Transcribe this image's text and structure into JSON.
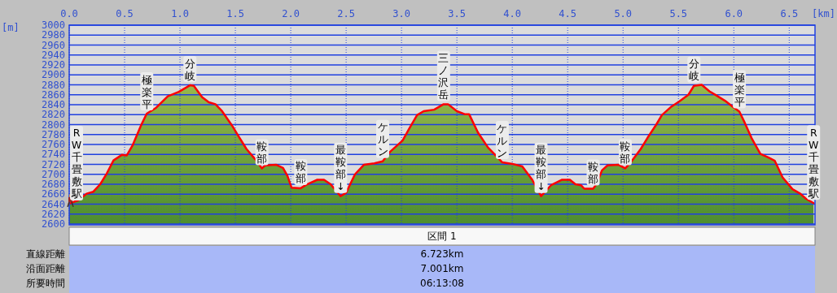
{
  "chart_data": {
    "type": "area",
    "xlabel": "[km]",
    "ylabel": "[m]",
    "grid": true,
    "xlim": [
      0,
      6.733
    ],
    "ylim": [
      2600,
      3000
    ],
    "xticks": [
      {
        "value": 0,
        "label": "0.0"
      },
      0.5,
      {
        "value": 1,
        "label": "1.0"
      },
      1.5,
      {
        "value": 2,
        "label": "2.0"
      },
      2.5,
      {
        "value": 3,
        "label": "3.0"
      },
      3.5,
      {
        "value": 4,
        "label": "4.0"
      },
      4.5,
      {
        "value": 5,
        "label": "5.0"
      },
      5.5,
      {
        "value": 6,
        "label": "6.0"
      },
      6.5
    ],
    "yticks": [
      2600,
      2620,
      2640,
      2660,
      2680,
      2700,
      2720,
      2740,
      2760,
      2780,
      2800,
      2820,
      2840,
      2860,
      2880,
      2900,
      2920,
      2940,
      2960,
      2980,
      3000
    ],
    "series": [
      {
        "color": "#ff0000",
        "x": [
          0,
          0.084,
          0.157,
          0.218,
          0.28,
          0.34,
          0.4,
          0.475,
          0.52,
          0.574,
          0.65,
          0.7,
          0.78,
          0.89,
          0.99,
          1.09,
          1.125,
          1.2,
          1.26,
          1.32,
          1.38,
          1.47,
          1.53,
          1.6,
          1.68,
          1.74,
          1.77,
          1.87,
          1.93,
          1.97,
          2.008,
          2.09,
          2.14,
          2.24,
          2.3,
          2.36,
          2.45,
          2.5,
          2.58,
          2.66,
          2.755,
          2.83,
          2.9,
          3.01,
          3.07,
          3.14,
          3.2,
          3.295,
          3.38,
          3.42,
          3.5,
          3.57,
          3.61,
          3.69,
          3.78,
          3.91,
          4.0,
          4.09,
          4.18,
          4.26,
          4.35,
          4.45,
          4.52,
          4.57,
          4.62,
          4.65,
          4.73,
          4.76,
          4.81,
          4.86,
          4.96,
          5.02,
          5.07,
          5.16,
          5.22,
          5.3,
          5.35,
          5.43,
          5.51,
          5.59,
          5.64,
          5.71,
          5.78,
          5.84,
          5.92,
          5.99,
          6.05,
          6.1,
          6.16,
          6.24,
          6.31,
          6.37,
          6.44,
          6.53,
          6.6,
          6.65,
          6.72
        ],
        "values": [
          2641,
          2648,
          2661,
          2665,
          2680,
          2702,
          2728,
          2739,
          2738,
          2759,
          2799,
          2822,
          2833,
          2857,
          2866,
          2879,
          2878,
          2855,
          2845,
          2841,
          2827,
          2798,
          2776,
          2751,
          2730,
          2712,
          2718,
          2719,
          2713,
          2697,
          2673,
          2672,
          2679,
          2689,
          2689,
          2680,
          2656,
          2663,
          2700,
          2719,
          2722,
          2726,
          2746,
          2768,
          2792,
          2819,
          2827,
          2830,
          2841,
          2841,
          2827,
          2821,
          2821,
          2784,
          2754,
          2724,
          2721,
          2716,
          2689,
          2656,
          2678,
          2689,
          2689,
          2680,
          2678,
          2671,
          2671,
          2680,
          2708,
          2718,
          2719,
          2712,
          2724,
          2751,
          2773,
          2800,
          2819,
          2835,
          2847,
          2860,
          2878,
          2880,
          2867,
          2859,
          2848,
          2836,
          2826,
          2803,
          2773,
          2741,
          2734,
          2727,
          2694,
          2670,
          2661,
          2651,
          2642
        ]
      }
    ],
    "annotations": [
      {
        "text": "RW千畳敷駅",
        "x": 0,
        "y": 2641
      },
      {
        "text": "極楽平",
        "x": 0.7,
        "y": 2822
      },
      {
        "text": "分岐",
        "x": 1.09,
        "y": 2879
      },
      {
        "text": "鞍部",
        "x": 1.74,
        "y": 2712
      },
      {
        "text": "鞍部",
        "x": 2.09,
        "y": 2672
      },
      {
        "text": "最鞍部↓",
        "x": 2.45,
        "y": 2656
      },
      {
        "text": "ケルン",
        "x": 2.83,
        "y": 2726
      },
      {
        "text": "三ノ沢岳",
        "x": 3.38,
        "y": 2841
      },
      {
        "text": "ケルン",
        "x": 3.91,
        "y": 2724
      },
      {
        "text": "最鞍部↓",
        "x": 4.26,
        "y": 2656
      },
      {
        "text": "鞍部",
        "x": 4.73,
        "y": 2671
      },
      {
        "text": "鞍部",
        "x": 5.02,
        "y": 2712
      },
      {
        "text": "分岐",
        "x": 5.64,
        "y": 2878
      },
      {
        "text": "極楽平",
        "x": 6.05,
        "y": 2826
      },
      {
        "text": "RW千畳敷駅",
        "x": 6.72,
        "y": 2642
      },
      "区間 1",
      "直線距離",
      "6.723km",
      "沿面距離",
      "7.001km",
      "所要時間",
      "06:13:08"
    ]
  }
}
